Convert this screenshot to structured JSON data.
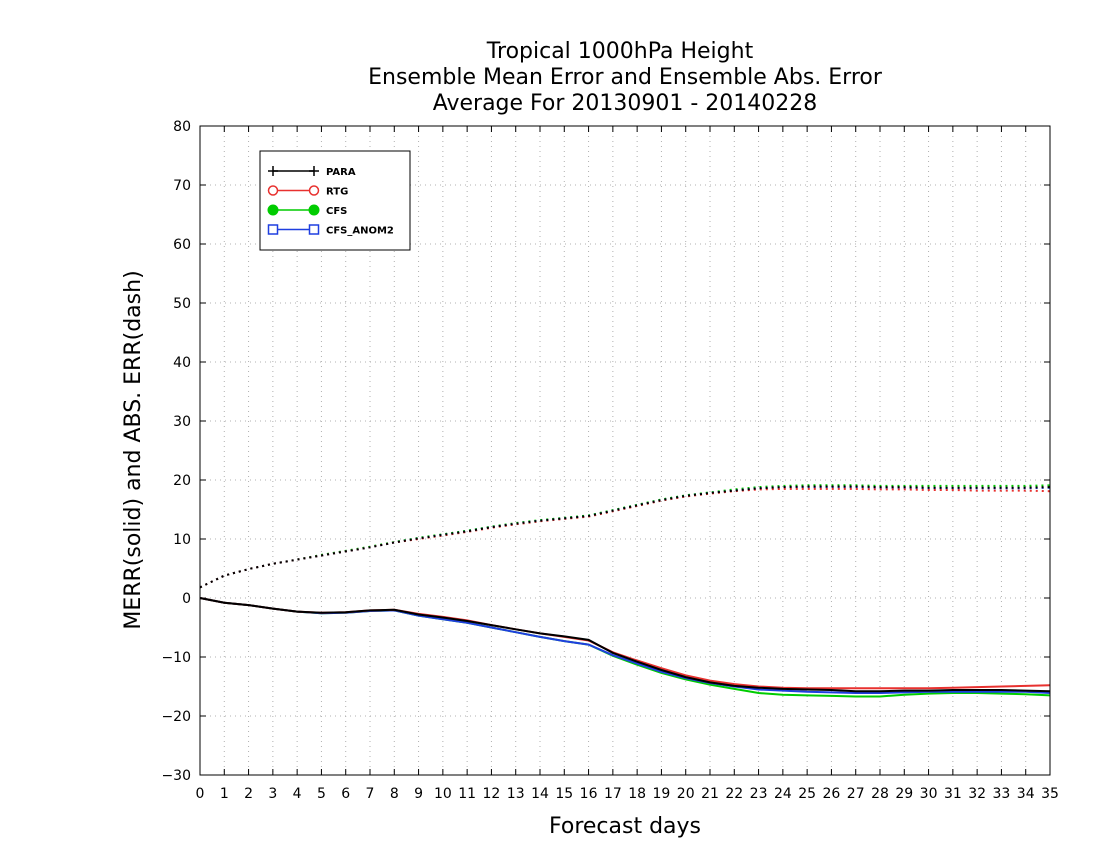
{
  "chart_data": {
    "type": "line",
    "title": [
      "Tropical 1000hPa Height",
      "Ensemble Mean Error and Ensemble Abs. Error",
      "Average For 20130901 - 20140228"
    ],
    "xlabel": "Forecast days",
    "ylabel": "MERR(solid) and ABS. ERR(dash)",
    "xlim": [
      0,
      35
    ],
    "ylim": [
      -30,
      80
    ],
    "xticks": [
      0,
      1,
      2,
      3,
      4,
      5,
      6,
      7,
      8,
      9,
      10,
      11,
      12,
      13,
      14,
      15,
      16,
      17,
      18,
      19,
      20,
      21,
      22,
      23,
      24,
      25,
      26,
      27,
      28,
      29,
      30,
      31,
      32,
      33,
      34,
      35
    ],
    "yticks": [
      -30,
      -20,
      -10,
      0,
      10,
      20,
      30,
      40,
      50,
      60,
      70,
      80
    ],
    "grid": true,
    "legend_position": "top-left",
    "x": [
      0,
      1,
      2,
      3,
      4,
      5,
      6,
      7,
      8,
      9,
      10,
      11,
      12,
      13,
      14,
      15,
      16,
      17,
      18,
      19,
      20,
      21,
      22,
      23,
      24,
      25,
      26,
      27,
      28,
      29,
      30,
      31,
      32,
      33,
      34,
      35
    ],
    "series": [
      {
        "name": "PARA",
        "color": "#000000",
        "marker": "plus",
        "merr": [
          0,
          -0.8,
          -1.2,
          -1.8,
          -2.3,
          -2.5,
          -2.4,
          -2.1,
          -2.0,
          -2.8,
          -3.3,
          -3.9,
          -4.6,
          -5.3,
          -6.0,
          -6.5,
          -7.1,
          -9.3,
          -10.8,
          -12.2,
          -13.4,
          -14.3,
          -14.9,
          -15.2,
          -15.4,
          -15.5,
          -15.6,
          -15.8,
          -15.8,
          -15.7,
          -15.7,
          -15.6,
          -15.6,
          -15.6,
          -15.7,
          -15.8
        ],
        "abs_err": [
          1.8,
          3.8,
          4.9,
          5.8,
          6.5,
          7.2,
          7.9,
          8.6,
          9.4,
          10.1,
          10.7,
          11.3,
          12.0,
          12.6,
          13.1,
          13.5,
          13.9,
          14.8,
          15.7,
          16.6,
          17.3,
          17.8,
          18.2,
          18.6,
          18.8,
          18.9,
          18.9,
          18.9,
          18.8,
          18.8,
          18.7,
          18.7,
          18.7,
          18.7,
          18.7,
          18.8
        ]
      },
      {
        "name": "RTG",
        "color": "#e8312f",
        "marker": "circle-open",
        "merr": [
          0,
          -0.8,
          -1.2,
          -1.8,
          -2.3,
          -2.5,
          -2.4,
          -2.1,
          -2.0,
          -2.7,
          -3.2,
          -3.8,
          -4.6,
          -5.3,
          -6.0,
          -6.6,
          -7.2,
          -9.2,
          -10.6,
          -11.9,
          -13.1,
          -14.0,
          -14.6,
          -15.0,
          -15.2,
          -15.3,
          -15.3,
          -15.3,
          -15.3,
          -15.3,
          -15.3,
          -15.2,
          -15.1,
          -15.0,
          -14.9,
          -14.8
        ],
        "abs_err": [
          1.8,
          3.8,
          4.9,
          5.8,
          6.5,
          7.2,
          7.9,
          8.6,
          9.4,
          10.0,
          10.6,
          11.2,
          11.9,
          12.5,
          13.0,
          13.4,
          13.8,
          14.7,
          15.6,
          16.5,
          17.2,
          17.7,
          18.1,
          18.4,
          18.5,
          18.5,
          18.5,
          18.5,
          18.4,
          18.4,
          18.3,
          18.3,
          18.2,
          18.2,
          18.2,
          18.1
        ]
      },
      {
        "name": "CFS",
        "color": "#00cc00",
        "marker": "circle-filled",
        "merr": [
          0,
          -0.8,
          -1.2,
          -1.8,
          -2.3,
          -2.6,
          -2.5,
          -2.2,
          -2.1,
          -3.0,
          -3.6,
          -4.2,
          -5.0,
          -5.8,
          -6.6,
          -7.3,
          -7.9,
          -9.8,
          -11.3,
          -12.7,
          -13.8,
          -14.7,
          -15.4,
          -16.1,
          -16.4,
          -16.5,
          -16.6,
          -16.7,
          -16.7,
          -16.4,
          -16.2,
          -16.1,
          -16.1,
          -16.2,
          -16.3,
          -16.5
        ],
        "abs_err": [
          1.8,
          3.8,
          4.9,
          5.8,
          6.5,
          7.3,
          8.0,
          8.7,
          9.5,
          10.2,
          10.8,
          11.4,
          12.1,
          12.7,
          13.2,
          13.6,
          14.0,
          14.9,
          15.8,
          16.7,
          17.4,
          17.9,
          18.4,
          18.8,
          19.0,
          19.1,
          19.1,
          19.1,
          19.0,
          19.0,
          19.0,
          19.0,
          19.0,
          19.0,
          19.0,
          19.1
        ]
      },
      {
        "name": "CFS_ANOM2",
        "color": "#1f3fe0",
        "marker": "square-open",
        "merr": [
          0,
          -0.8,
          -1.2,
          -1.8,
          -2.3,
          -2.6,
          -2.5,
          -2.2,
          -2.1,
          -3.0,
          -3.6,
          -4.2,
          -5.0,
          -5.8,
          -6.6,
          -7.3,
          -7.9,
          -9.7,
          -11.1,
          -12.5,
          -13.6,
          -14.4,
          -15.0,
          -15.5,
          -15.7,
          -15.9,
          -16.0,
          -16.1,
          -16.1,
          -16.0,
          -15.9,
          -15.9,
          -15.9,
          -15.9,
          -15.9,
          -16.1
        ],
        "abs_err": [
          1.8,
          3.8,
          4.9,
          5.8,
          6.5,
          7.2,
          7.9,
          8.6,
          9.4,
          10.1,
          10.7,
          11.3,
          12.0,
          12.6,
          13.1,
          13.5,
          13.9,
          14.8,
          15.7,
          16.6,
          17.3,
          17.8,
          18.2,
          18.6,
          18.8,
          18.8,
          18.8,
          18.8,
          18.7,
          18.7,
          18.6,
          18.6,
          18.6,
          18.6,
          18.6,
          18.7
        ]
      }
    ]
  }
}
